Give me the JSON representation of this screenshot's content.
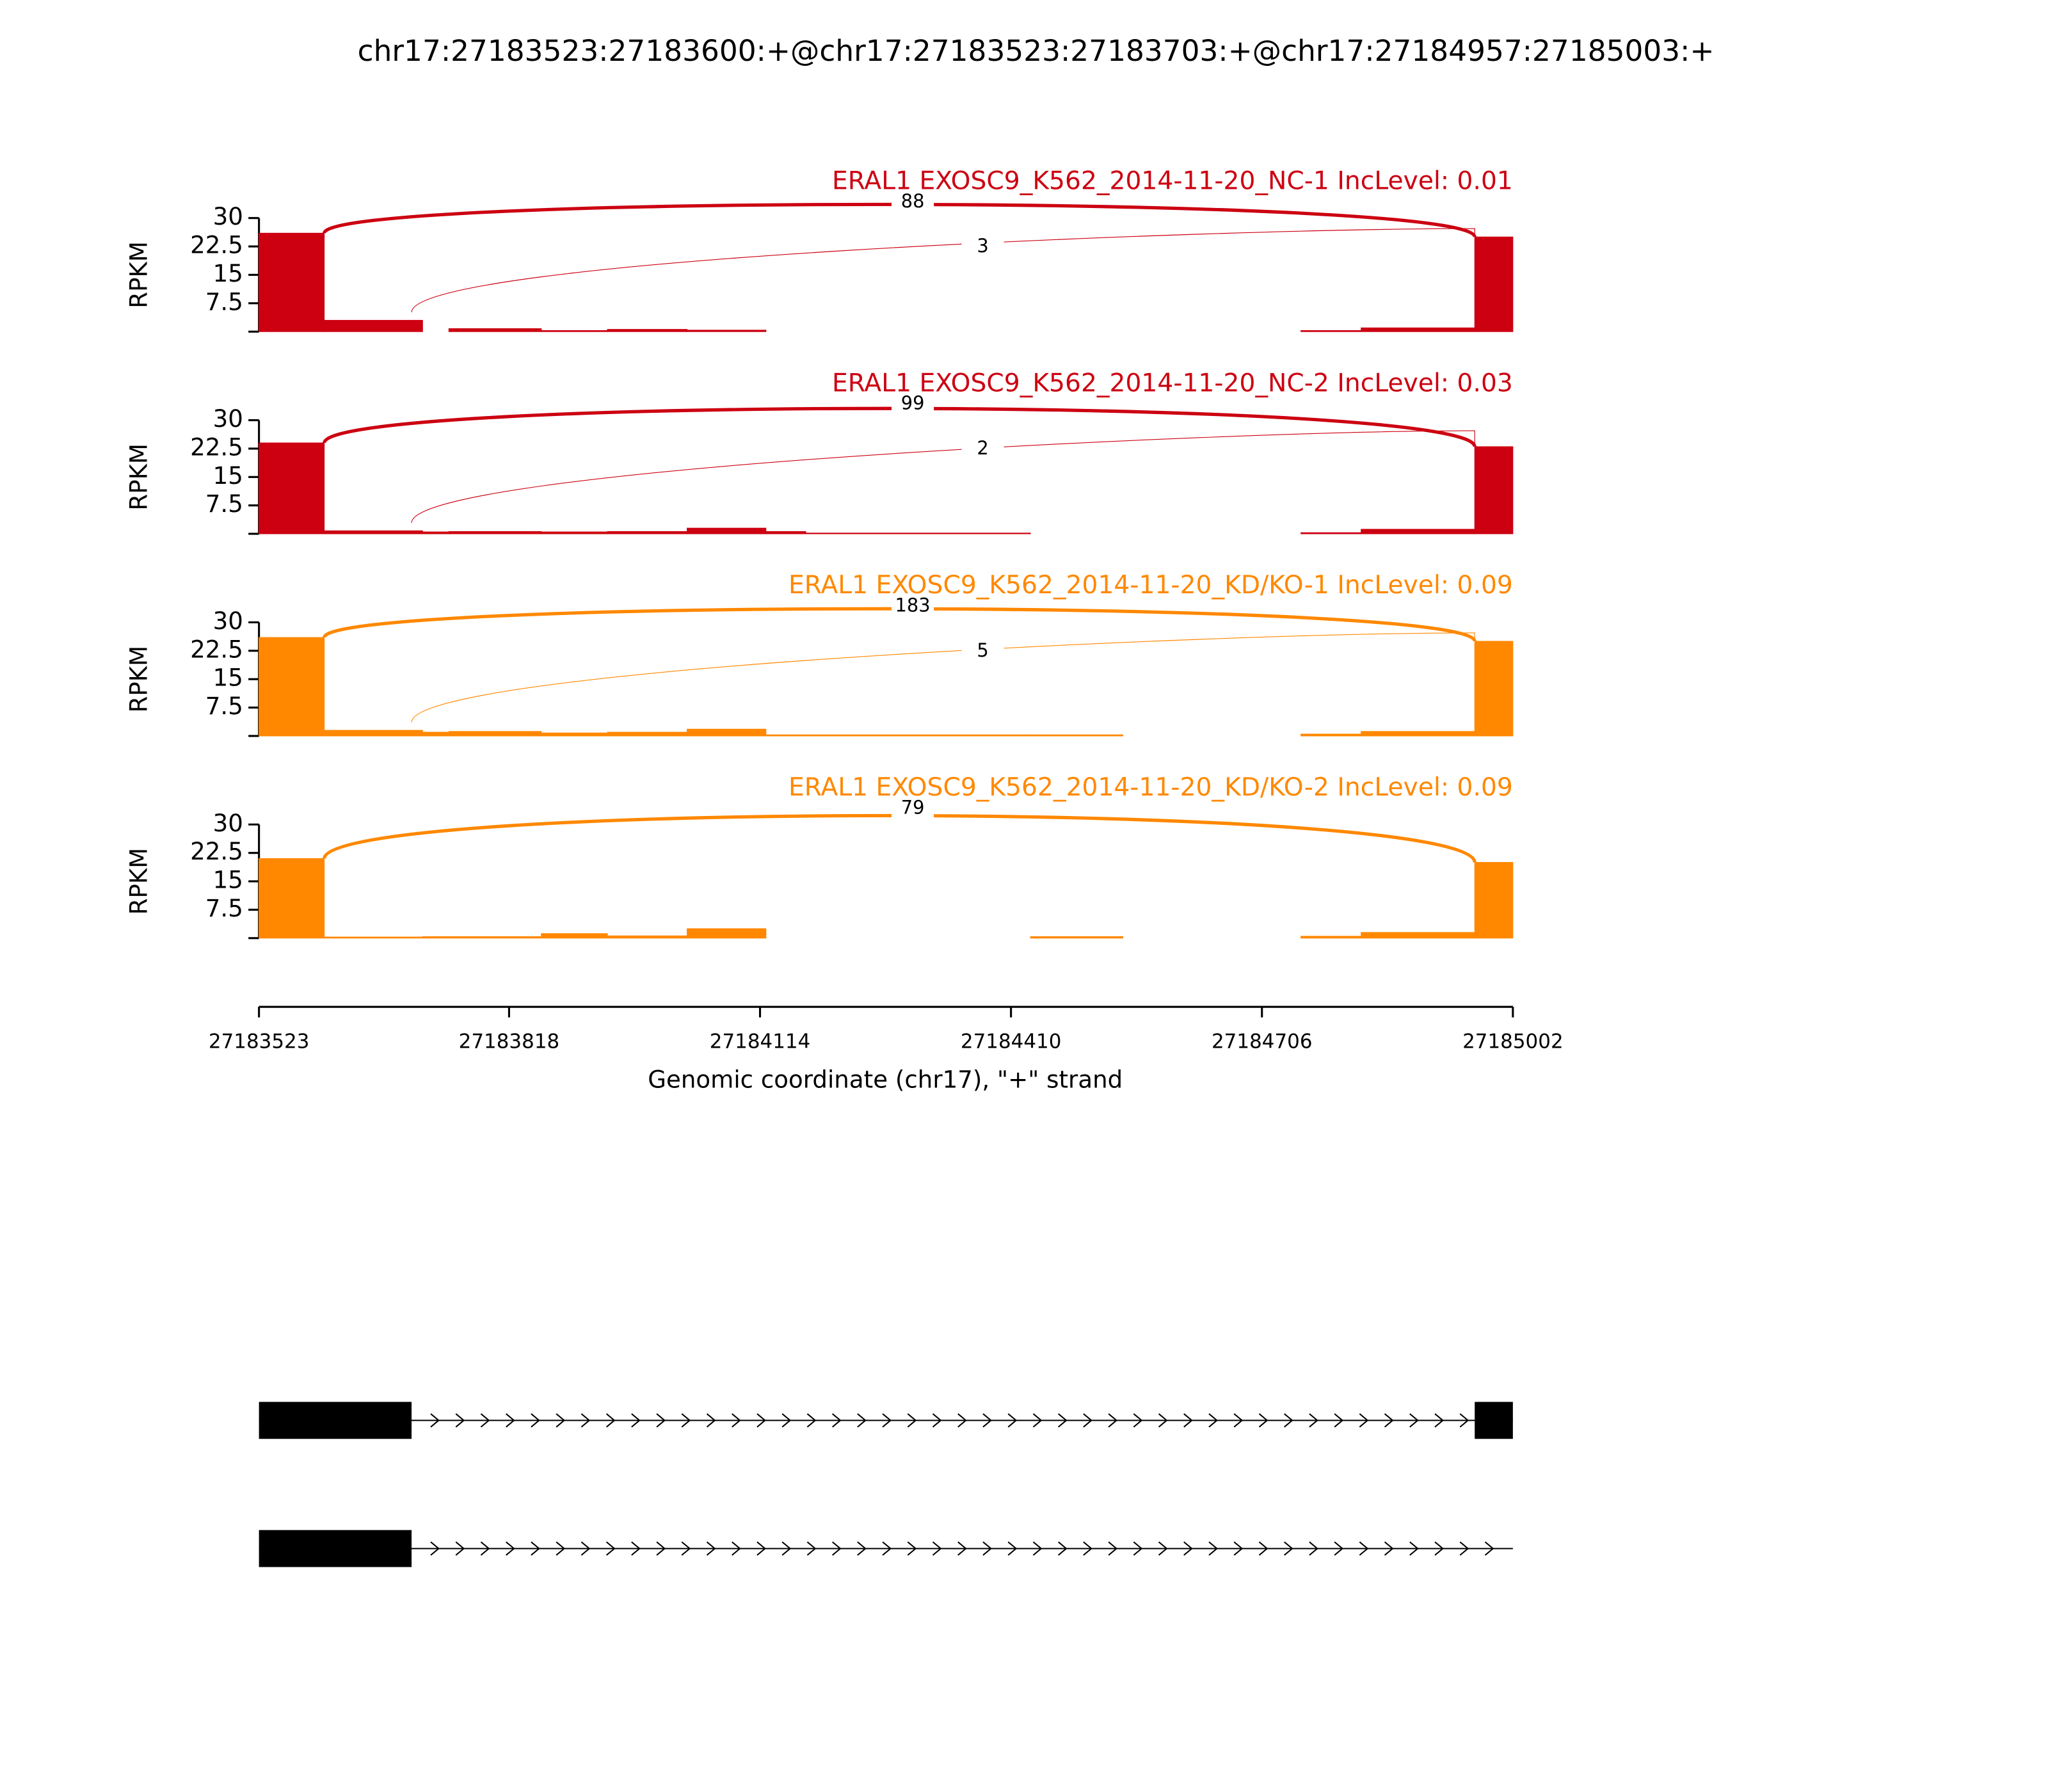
{
  "chart_data": {
    "type": "sashimi",
    "title": "chr17:27183523:27183600:+@chr17:27183523:27183703:+@chr17:27184957:27185003:+",
    "xlim": [
      27183523,
      27185002
    ],
    "xticks": [
      27183523,
      27183818,
      27184114,
      27184410,
      27184706,
      27185002
    ],
    "xlabel": "Genomic coordinate (chr17), \"+\" strand",
    "panels": [
      {
        "title": "ERAL1 EXOSC9_K562_2014-11-20_NC-1 IncLevel: 0.01",
        "ylabel": "RPKM",
        "color": "#cc0011",
        "ylim": [
          0,
          30
        ],
        "yticks": [
          7.5,
          15,
          22.5,
          30
        ],
        "x": [
          27183523,
          27183600,
          27183716,
          27183747,
          27183856,
          27183934,
          27184028,
          27184121,
          27184752,
          27184823,
          27184957
        ],
        "values": [
          26,
          3,
          0,
          0.8,
          0.3,
          0.6,
          0.4,
          0,
          0.3,
          1,
          25
        ],
        "junctions": [
          {
            "start": 27183600,
            "end": 27184957,
            "count": 88
          },
          {
            "start": 27183703,
            "end": 27184957,
            "count": 3
          }
        ]
      },
      {
        "title": "ERAL1 EXOSC9_K562_2014-11-20_NC-2 IncLevel: 0.03",
        "ylabel": "RPKM",
        "color": "#cc0011",
        "ylim": [
          0,
          30
        ],
        "yticks": [
          7.5,
          15,
          22.5,
          30
        ],
        "x": [
          27183523,
          27183600,
          27183716,
          27183747,
          27183856,
          27183934,
          27184028,
          27184121,
          27184168,
          27184433,
          27184752,
          27184823,
          27184957
        ],
        "values": [
          24,
          0.8,
          0.5,
          0.6,
          0.5,
          0.6,
          1.5,
          0.6,
          0.2,
          0,
          0.3,
          1.2,
          23
        ],
        "junctions": [
          {
            "start": 27183600,
            "end": 27184957,
            "count": 99
          },
          {
            "start": 27183703,
            "end": 27184957,
            "count": 2
          }
        ]
      },
      {
        "title": "ERAL1 EXOSC9_K562_2014-11-20_KD/KO-1 IncLevel: 0.09",
        "ylabel": "RPKM",
        "color": "#ff8800",
        "ylim": [
          0,
          30
        ],
        "yticks": [
          7.5,
          15,
          22.5,
          30
        ],
        "x": [
          27183523,
          27183600,
          27183716,
          27183747,
          27183856,
          27183934,
          27184028,
          27184121,
          27184433,
          27184542,
          27184752,
          27184823,
          27184957
        ],
        "values": [
          26,
          1.5,
          1,
          1.2,
          0.8,
          1,
          1.8,
          0.3,
          0.3,
          0,
          0.5,
          1.2,
          25
        ],
        "junctions": [
          {
            "start": 27183600,
            "end": 27184957,
            "count": 183
          },
          {
            "start": 27183703,
            "end": 27184957,
            "count": 5
          }
        ]
      },
      {
        "title": "ERAL1 EXOSC9_K562_2014-11-20_KD/KO-2 IncLevel: 0.09",
        "ylabel": "RPKM",
        "color": "#ff8800",
        "ylim": [
          0,
          30
        ],
        "yticks": [
          7.5,
          15,
          22.5,
          30
        ],
        "x": [
          27183523,
          27183600,
          27183716,
          27183856,
          27183934,
          27184028,
          27184121,
          27184433,
          27184542,
          27184752,
          27184823,
          27184957
        ],
        "values": [
          21,
          0.3,
          0.4,
          1.2,
          0.6,
          2.5,
          0,
          0.4,
          0,
          0.5,
          1.5,
          20
        ],
        "junctions": [
          {
            "start": 27183600,
            "end": 27184957,
            "count": 79
          }
        ]
      }
    ],
    "transcripts": [
      {
        "exons": [
          [
            27183523,
            27183703
          ],
          [
            27184957,
            27185002
          ]
        ]
      },
      {
        "exons": [
          [
            27183523,
            27183703
          ]
        ]
      }
    ]
  }
}
